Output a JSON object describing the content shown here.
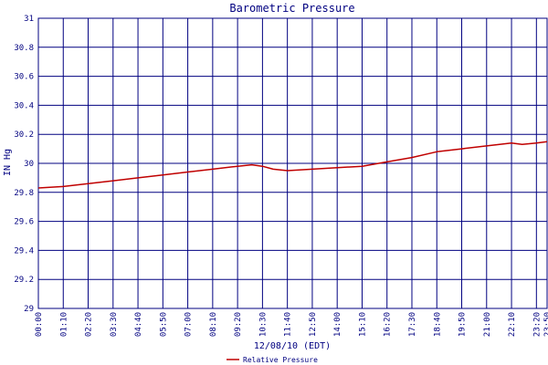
{
  "chart_data": {
    "type": "line",
    "title": "Barometric Pressure",
    "xlabel": "12/08/10 (EDT)",
    "ylabel": "IN Hg",
    "ylim": [
      29,
      31
    ],
    "y_ticks": [
      "29",
      "29.2",
      "29.4",
      "29.6",
      "29.8",
      "30",
      "30.2",
      "30.4",
      "30.6",
      "30.8",
      "31"
    ],
    "x_ticks": [
      "00:00",
      "01:10",
      "02:20",
      "03:30",
      "04:40",
      "05:50",
      "07:00",
      "08:10",
      "09:20",
      "10:30",
      "11:40",
      "12:50",
      "14:00",
      "15:10",
      "16:20",
      "17:30",
      "18:40",
      "19:50",
      "21:00",
      "22:10",
      "23:20",
      "23:50"
    ],
    "grid": true,
    "legend_position": "bottom",
    "colors": {
      "grid": "#000080",
      "text": "#000080",
      "series": "#c00000"
    },
    "series": [
      {
        "name": "Relative Pressure",
        "x": [
          "00:00",
          "01:10",
          "02:20",
          "03:30",
          "04:40",
          "05:50",
          "07:00",
          "08:10",
          "09:20",
          "10:00",
          "10:30",
          "11:00",
          "11:40",
          "12:50",
          "14:00",
          "15:10",
          "16:20",
          "17:30",
          "18:40",
          "19:50",
          "21:00",
          "22:10",
          "22:40",
          "23:20",
          "23:50"
        ],
        "y": [
          29.83,
          29.84,
          29.86,
          29.88,
          29.9,
          29.92,
          29.94,
          29.96,
          29.98,
          29.99,
          29.98,
          29.96,
          29.95,
          29.96,
          29.97,
          29.98,
          30.01,
          30.04,
          30.08,
          30.1,
          30.12,
          30.14,
          30.13,
          30.14,
          30.15
        ]
      }
    ]
  }
}
